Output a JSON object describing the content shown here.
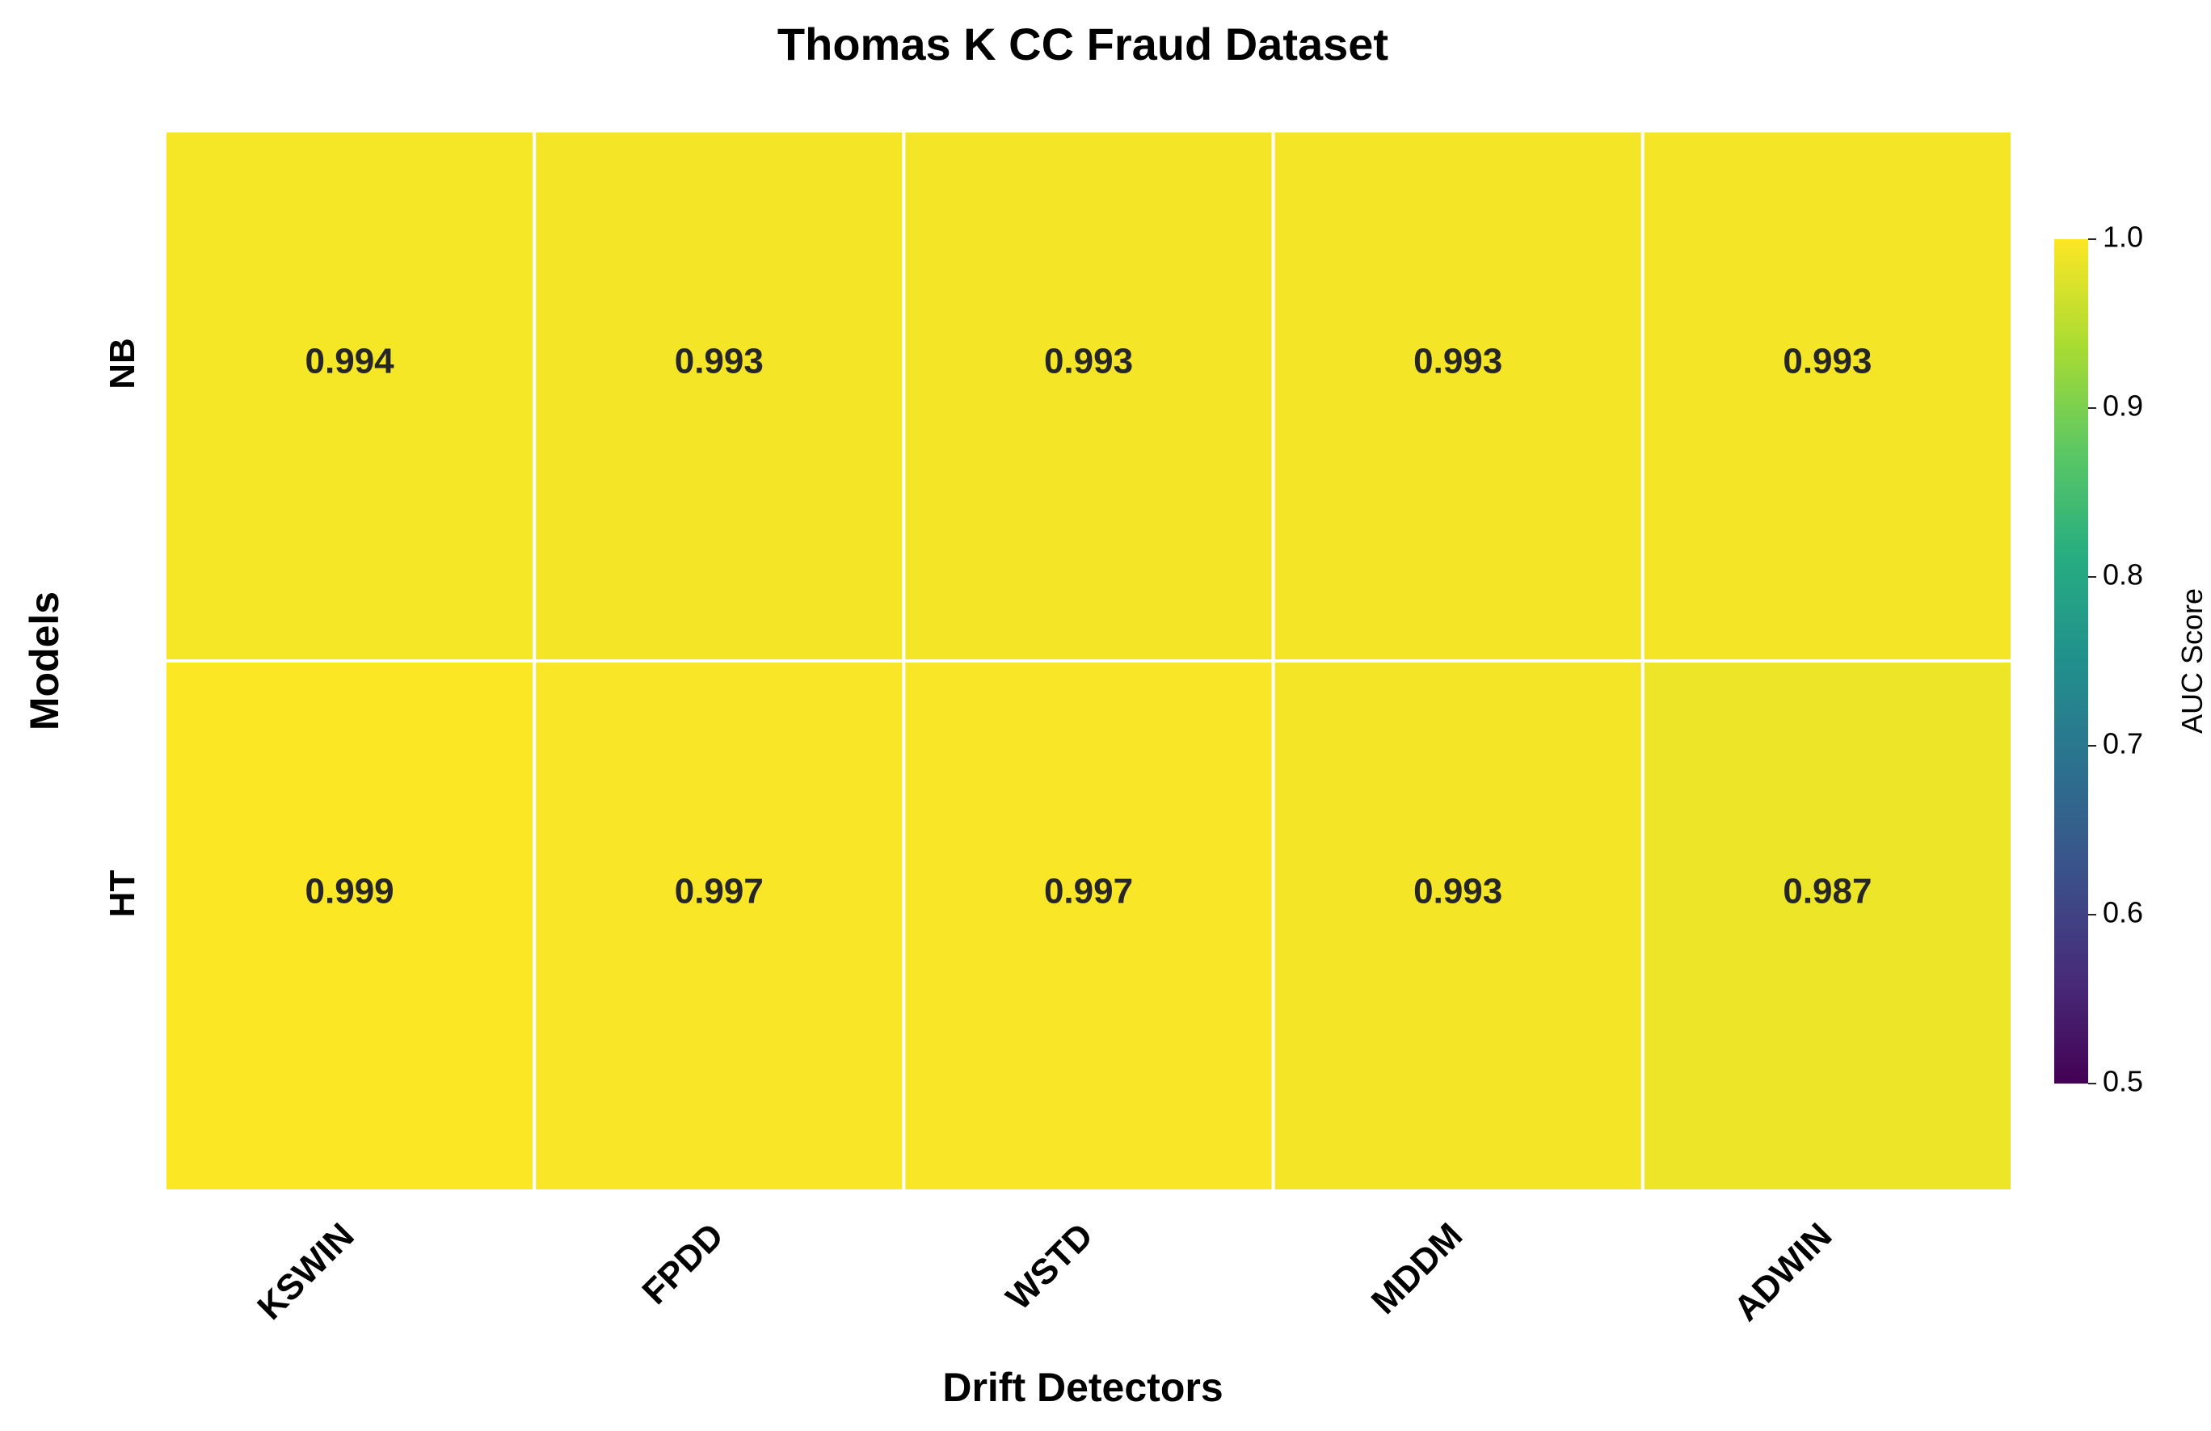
{
  "chart_data": {
    "type": "heatmap",
    "title": "Thomas K CC Fraud Dataset",
    "xlabel": "Drift Detectors",
    "ylabel": "Models",
    "x_categories": [
      "KSWIN",
      "FPDD",
      "WSTD",
      "MDDM",
      "ADWIN"
    ],
    "y_categories": [
      "NB",
      "HT"
    ],
    "values": [
      [
        0.994,
        0.993,
        0.993,
        0.993,
        0.993
      ],
      [
        0.999,
        0.997,
        0.997,
        0.993,
        0.987
      ]
    ],
    "value_labels": [
      [
        "0.994",
        "0.993",
        "0.993",
        "0.993",
        "0.993"
      ],
      [
        "0.999",
        "0.997",
        "0.997",
        "0.993",
        "0.987"
      ]
    ],
    "colormap": "viridis",
    "colorbar": {
      "label": "AUC Score",
      "range": [
        0.5,
        1.0
      ],
      "ticks": [
        "0.5",
        "0.6",
        "0.7",
        "0.8",
        "0.9",
        "1.0"
      ]
    },
    "grid": false
  }
}
